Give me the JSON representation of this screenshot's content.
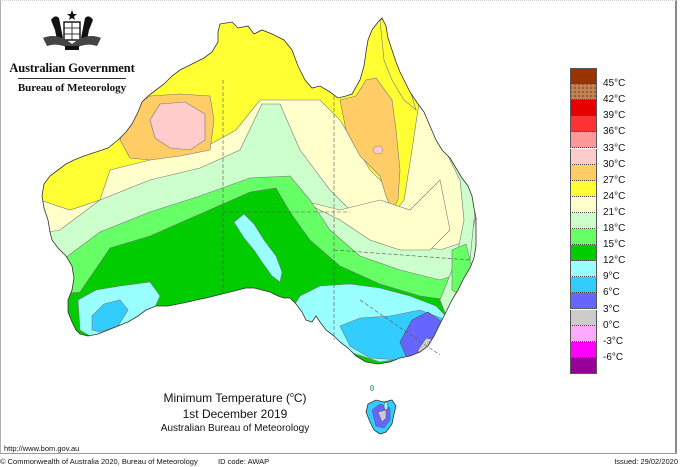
{
  "header": {
    "government": "Australian Government",
    "bureau": "Bureau of Meteorology",
    "crest_icon": "coat-of-arms-icon"
  },
  "map": {
    "title": "Minimum Temperature (°C)",
    "title_prefix": "Minimum Temperature (",
    "title_unit_sup": "o",
    "title_suffix": "C)",
    "date": "1st December 2019",
    "source": "Australian Bureau of Meteorology"
  },
  "legend": {
    "unit": "°C",
    "items": [
      {
        "label": "45°C",
        "color": "#993300",
        "pattern": "solid"
      },
      {
        "label": "42°C",
        "color": "#b8845a",
        "pattern": "dotted"
      },
      {
        "label": "39°C",
        "color": "#e60000",
        "pattern": "solid"
      },
      {
        "label": "36°C",
        "color": "#ff3333",
        "pattern": "solid"
      },
      {
        "label": "33°C",
        "color": "#ff9999",
        "pattern": "solid"
      },
      {
        "label": "30°C",
        "color": "#ffcccc",
        "pattern": "solid"
      },
      {
        "label": "27°C",
        "color": "#ffcc66",
        "pattern": "solid"
      },
      {
        "label": "24°C",
        "color": "#ffff33",
        "pattern": "solid"
      },
      {
        "label": "21°C",
        "color": "#ffffcc",
        "pattern": "solid"
      },
      {
        "label": "18°C",
        "color": "#ccffcc",
        "pattern": "solid"
      },
      {
        "label": "15°C",
        "color": "#66ff66",
        "pattern": "solid"
      },
      {
        "label": "12°C",
        "color": "#00cc00",
        "pattern": "solid"
      },
      {
        "label": "9°C",
        "color": "#99ffff",
        "pattern": "solid"
      },
      {
        "label": "6°C",
        "color": "#33ccff",
        "pattern": "solid"
      },
      {
        "label": "3°C",
        "color": "#6666ff",
        "pattern": "solid"
      },
      {
        "label": "0°C",
        "color": "#cccccc",
        "pattern": "solid"
      },
      {
        "label": "-3°C",
        "color": "#ffaaff",
        "pattern": "solid"
      },
      {
        "label": "-6°C",
        "color": "#ff00ff",
        "pattern": "solid"
      },
      {
        "label": "",
        "color": "#990099",
        "pattern": "solid"
      }
    ]
  },
  "footer": {
    "url": "http://www.bom.gov.au",
    "copyright": "© Commonwealth of Australia 2020, Bureau of Meteorology",
    "id_code": "ID code: AWAP",
    "issued": "Issued: 29/02/2020"
  }
}
